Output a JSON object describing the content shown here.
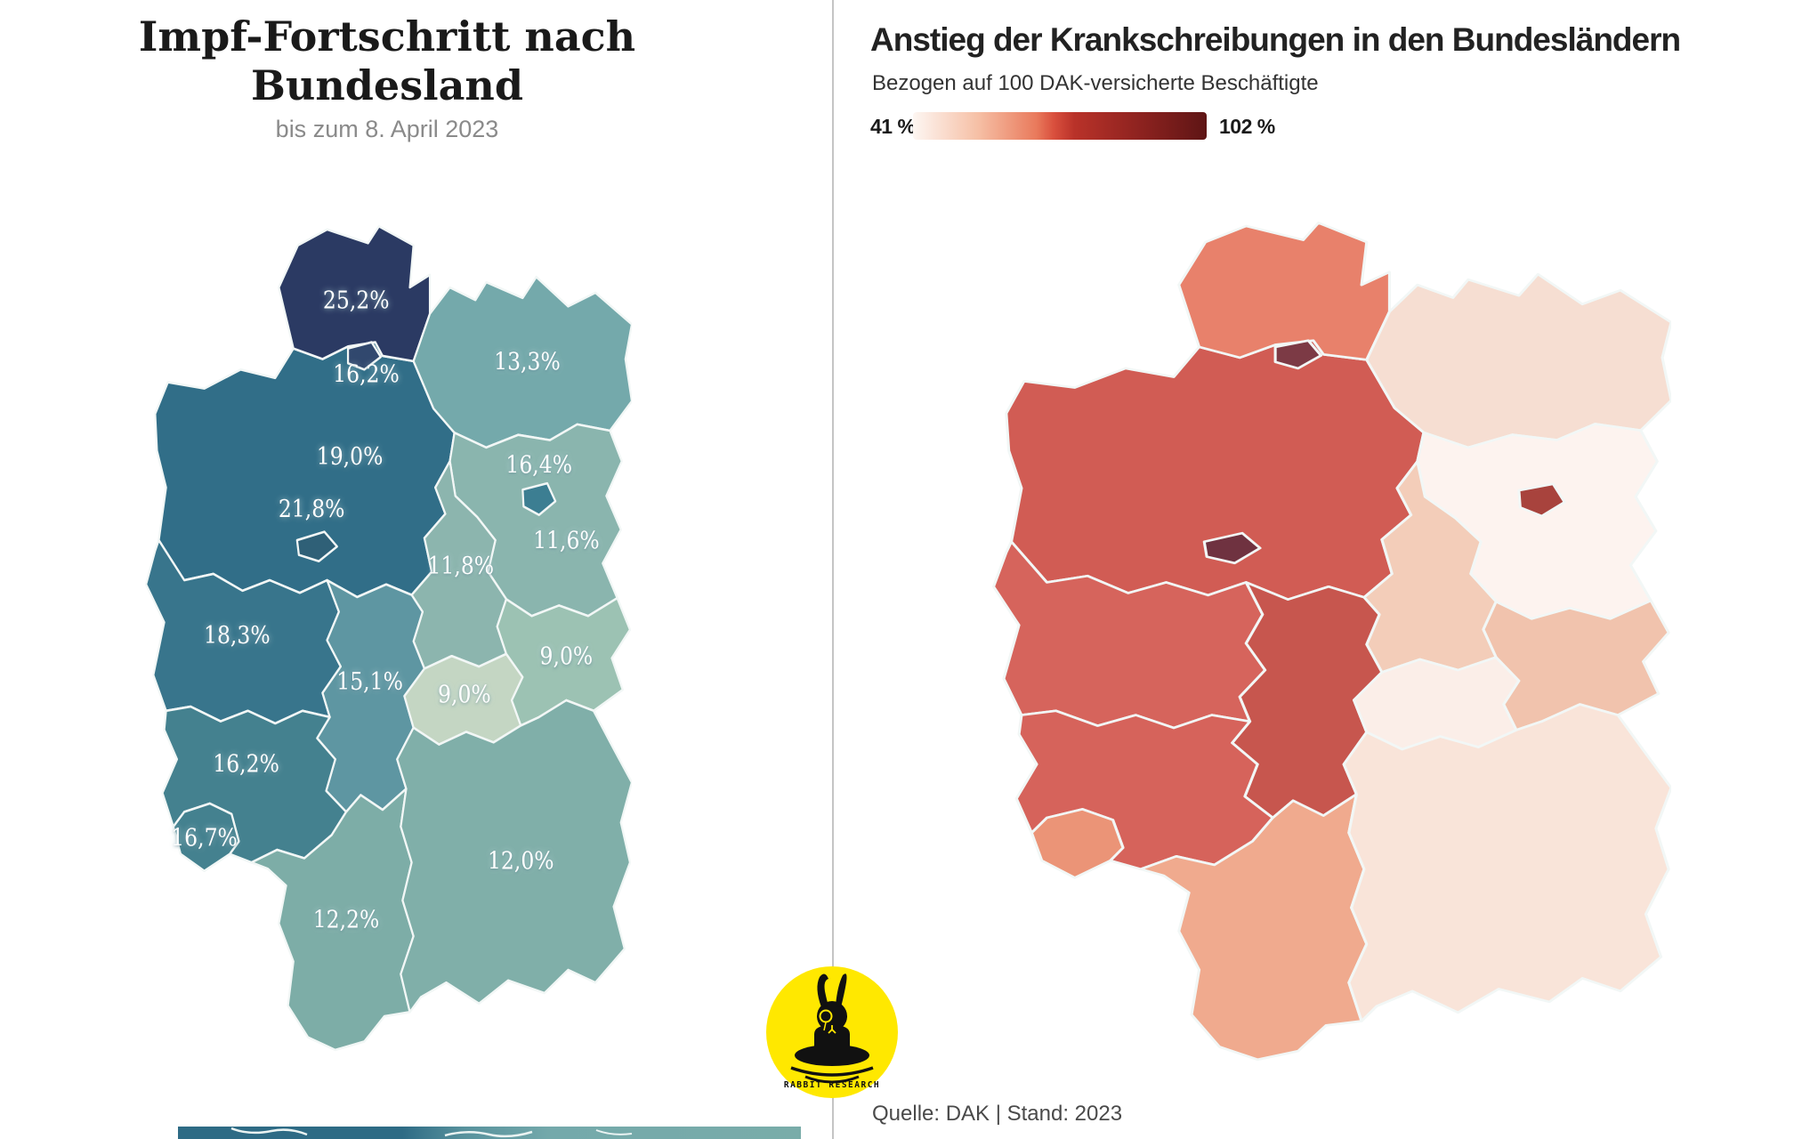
{
  "left_panel": {
    "title": "Impf-Fortschritt nach Bundesland",
    "subtitle": "bis zum 8. April 2023"
  },
  "right_panel": {
    "title": "Anstieg der Krankschreibungen in den Bundesländern",
    "subtitle": "Bezogen auf 100 DAK-versicherte Beschäftigte",
    "legend": {
      "min_label": "41 %",
      "max_label": "102 %"
    },
    "source": "Quelle: DAK | Stand: 2023"
  },
  "logo": {
    "text": "RABBIT RESEARCH",
    "circle_color": "#ffe800"
  },
  "states": [
    {
      "id": "SH",
      "name": "Schleswig-Holstein",
      "value": "25,2%",
      "left_color": "#2b3a63",
      "right_color": "#e8816b"
    },
    {
      "id": "HH",
      "name": "Hamburg",
      "value": "16,2%",
      "left_color": "#31486e",
      "right_color": "#7c3a45"
    },
    {
      "id": "HB",
      "name": "Bremen",
      "value": "21,8%",
      "left_color": "#2f6077",
      "right_color": "#6f3240"
    },
    {
      "id": "NI",
      "name": "Niedersachsen",
      "value": "19,0%",
      "left_color": "#316e88",
      "right_color": "#d15c54"
    },
    {
      "id": "MV",
      "name": "Mecklenburg-Vorpommern",
      "value": "13,3%",
      "left_color": "#74a9ab",
      "right_color": "#f6ded2"
    },
    {
      "id": "BE",
      "name": "Berlin",
      "value": "16,4%",
      "left_color": "#3c7e92",
      "right_color": "#a8433d"
    },
    {
      "id": "BB",
      "name": "Brandenburg",
      "value": "11,6%",
      "left_color": "#8ab5ae",
      "right_color": "#fdf3ef"
    },
    {
      "id": "ST",
      "name": "Sachsen-Anhalt",
      "value": "11,8%",
      "left_color": "#8cb5ae",
      "right_color": "#f3cdb9"
    },
    {
      "id": "NW",
      "name": "Nordrhein-Westfalen",
      "value": "18,3%",
      "left_color": "#38758c",
      "right_color": "#d6645c"
    },
    {
      "id": "SN",
      "name": "Sachsen",
      "value": "9,0%",
      "left_color": "#9cc2b3",
      "right_color": "#f1c3ad"
    },
    {
      "id": "TH",
      "name": "Thüringen",
      "value": "9,0%",
      "left_color": "#c4d6c3",
      "right_color": "#fbeee8"
    },
    {
      "id": "HE",
      "name": "Hessen",
      "value": "15,1%",
      "left_color": "#5e96a2",
      "right_color": "#c7564e"
    },
    {
      "id": "RP",
      "name": "Rheinland-Pfalz",
      "value": "16,2%",
      "left_color": "#44818f",
      "right_color": "#d6635b"
    },
    {
      "id": "SL",
      "name": "Saarland",
      "value": "16,7%",
      "left_color": "#44818f",
      "right_color": "#eb9477"
    },
    {
      "id": "BW",
      "name": "Baden-Württemberg",
      "value": "12,2%",
      "left_color": "#7dada7",
      "right_color": "#f0aa8e"
    },
    {
      "id": "BY",
      "name": "Bayern",
      "value": "12,0%",
      "left_color": "#80afa9",
      "right_color": "#f9e4d9"
    }
  ],
  "chart_data": [
    {
      "type": "choropleth-map",
      "title": "Impf-Fortschritt nach Bundesland",
      "subtitle": "bis zum 8. April 2023",
      "region": "Germany (Bundesländer)",
      "unit": "%",
      "values": {
        "Schleswig-Holstein": 25.2,
        "Hamburg": 16.2,
        "Bremen": 21.8,
        "Niedersachsen": 19.0,
        "Mecklenburg-Vorpommern": 13.3,
        "Berlin": 16.4,
        "Brandenburg": 11.6,
        "Sachsen-Anhalt": 11.8,
        "Nordrhein-Westfalen": 18.3,
        "Sachsen": 9.0,
        "Thüringen": 9.0,
        "Hessen": 15.1,
        "Rheinland-Pfalz": 16.2,
        "Saarland": 16.7,
        "Baden-Württemberg": 12.2,
        "Bayern": 12.0
      },
      "color_scale": "teal, dark = high value"
    },
    {
      "type": "choropleth-map",
      "title": "Anstieg der Krankschreibungen in den Bundesländern",
      "subtitle": "Bezogen auf 100 DAK-versicherte Beschäftigte",
      "region": "Germany (Bundesländer)",
      "unit": "%",
      "values_labeled_on_map": false,
      "scale": {
        "min": 41,
        "max": 102,
        "min_label": "41 %",
        "max_label": "102 %"
      },
      "legend_position": "top-left under subtitle",
      "color_scale": "white → salmon → dark red, dark = high value",
      "source": "Quelle: DAK | Stand: 2023"
    }
  ]
}
